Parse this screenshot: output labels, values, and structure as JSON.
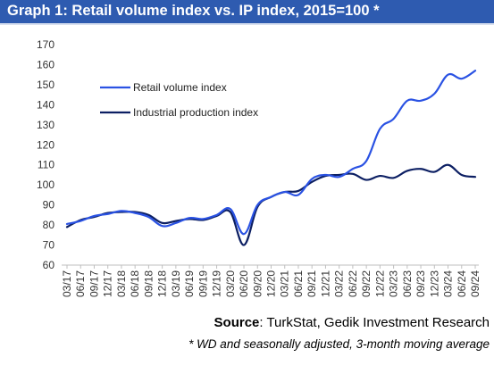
{
  "title": "Graph 1: Retail volume index vs. IP index, 2015=100 *",
  "source_label": "Source",
  "source_text": ": TurkStat, Gedik Investment Research",
  "footnote": "* WD and seasonally adjusted, 3-month moving average",
  "colors": {
    "title_bg": "#2e5bb0",
    "retail": "#2a52e3",
    "industrial": "#0c1f63"
  },
  "chart_data": {
    "type": "line",
    "ylim": [
      60,
      170
    ],
    "yticks": [
      60,
      70,
      80,
      90,
      100,
      110,
      120,
      130,
      140,
      150,
      160,
      170
    ],
    "x": [
      "03/17",
      "06/17",
      "09/17",
      "12/17",
      "03/18",
      "06/18",
      "09/18",
      "12/18",
      "03/19",
      "06/19",
      "09/19",
      "12/19",
      "03/20",
      "06/20",
      "09/20",
      "12/20",
      "03/21",
      "06/21",
      "09/21",
      "12/21",
      "03/22",
      "06/22",
      "09/22",
      "12/22",
      "03/23",
      "06/23",
      "09/23",
      "12/23",
      "03/24",
      "06/24",
      "09/24"
    ],
    "legend_position": "upper-left",
    "series": [
      {
        "name": "Retail volume index",
        "color": "#2a52e3",
        "values": [
          80.5,
          82,
          84.5,
          85.5,
          87,
          86,
          84,
          79.5,
          81,
          83.5,
          83,
          85,
          88,
          75.5,
          90,
          94,
          96.5,
          95,
          103,
          105,
          104,
          108,
          112,
          128,
          133,
          142,
          142,
          145.5,
          155,
          153,
          157
        ]
      },
      {
        "name": "Industrial production index",
        "color": "#0c1f63",
        "values": [
          79,
          82.5,
          84,
          86,
          86.5,
          86.5,
          85,
          81,
          82,
          83,
          82.5,
          84.5,
          86.5,
          70,
          89,
          94,
          96.5,
          97,
          101.5,
          104.5,
          105,
          105.5,
          102.5,
          104.5,
          103.5,
          107,
          108,
          106.5,
          110,
          105,
          104
        ]
      }
    ]
  }
}
